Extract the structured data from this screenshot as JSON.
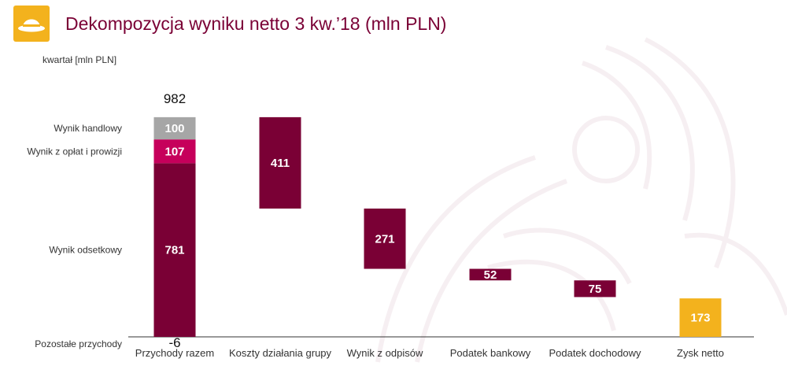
{
  "header": {
    "title": "Dekompozycja wyniku netto 3 kw.’18 (mln PLN)",
    "unit_label": "kwartał [mln PLN]"
  },
  "colors": {
    "accent": "#7a0035",
    "magenta": "#c6005b",
    "grey": "#a6a6a6",
    "gold": "#f3b21d"
  },
  "icons": {
    "logo": "bowler-hat-icon"
  },
  "chart_data": {
    "type": "waterfall",
    "title": "Dekompozycja wyniku netto 3 kw.’18 (mln PLN)",
    "unit_label": "kwartał [mln PLN]",
    "categories": [
      "Przychody razem",
      "Koszty działania grupy",
      "Wynik z odpisów",
      "Podatek bankowy",
      "Podatek dochodowy",
      "Zysk netto"
    ],
    "total_label": "982",
    "stack": [
      {
        "name": "Pozostałe przychody",
        "value": -6,
        "label": "-6",
        "color": "#7a0035"
      },
      {
        "name": "Wynik odsetkowy",
        "value": 781,
        "label": "781",
        "color": "#7a0035"
      },
      {
        "name": "Wynik z opłat i prowizji",
        "value": 107,
        "label": "107",
        "color": "#c6005b"
      },
      {
        "name": "Wynik handlowy",
        "value": 100,
        "label": "100",
        "color": "#a6a6a6"
      }
    ],
    "steps": [
      {
        "category": "Koszty działania grupy",
        "value": -411,
        "label": "411",
        "color": "#7a0035"
      },
      {
        "category": "Wynik z odpisów",
        "value": -271,
        "label": "271",
        "color": "#7a0035"
      },
      {
        "category": "Podatek bankowy",
        "value": -52,
        "label": "52",
        "color": "#7a0035"
      },
      {
        "category": "Podatek dochodowy",
        "value": -75,
        "label": "75",
        "color": "#7a0035"
      }
    ],
    "result": {
      "category": "Zysk netto",
      "value": 173,
      "label": "173",
      "color": "#f3b21d"
    },
    "ylim": [
      0,
      1000
    ],
    "grid": false,
    "legend": "left"
  }
}
